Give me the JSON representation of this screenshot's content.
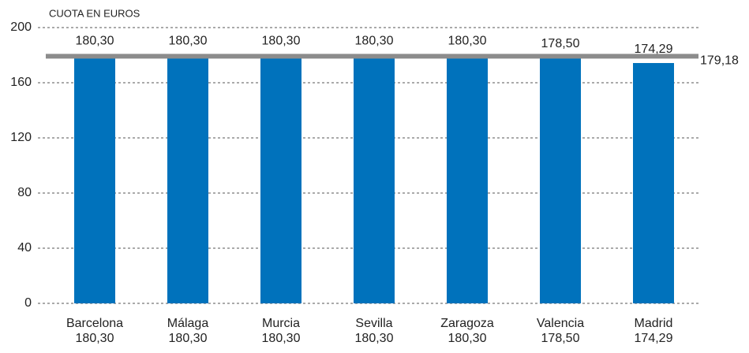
{
  "chart_data": {
    "type": "bar",
    "title": "CUOTA EN EUROS",
    "categories": [
      "Barcelona",
      "Málaga",
      "Murcia",
      "Sevilla",
      "Zaragoza",
      "Valencia",
      "Madrid"
    ],
    "values": [
      180.3,
      180.3,
      180.3,
      180.3,
      180.3,
      178.5,
      174.29
    ],
    "value_labels": [
      "180,30",
      "180,30",
      "180,30",
      "180,30",
      "180,30",
      "178,50",
      "174,29"
    ],
    "color": "#0072bc",
    "reference_line": {
      "value": 179.18,
      "label": "179,18",
      "color": "#8c8c8c"
    },
    "ylim": [
      0,
      200
    ],
    "yticks": [
      0,
      40,
      80,
      120,
      160,
      200
    ],
    "grid": true
  }
}
